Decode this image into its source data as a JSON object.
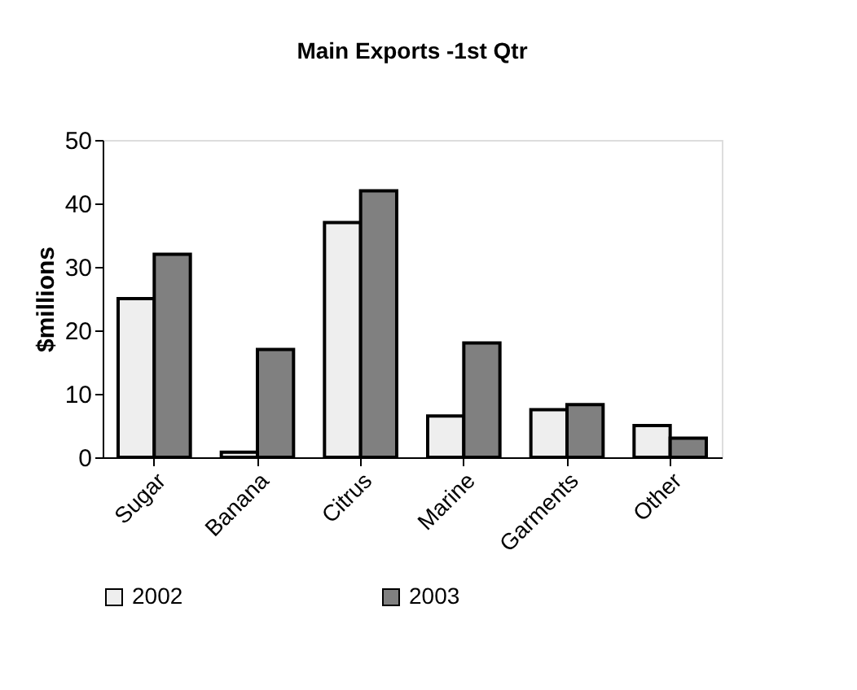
{
  "chart_data": {
    "type": "bar",
    "title": "Main  Exports -1st Qtr",
    "ylabel": "$millions",
    "categories": [
      "Sugar",
      "Banana",
      "Citrus",
      "Marine",
      "Garments",
      "Other"
    ],
    "series": [
      {
        "name": "2002",
        "color": "#eeeeee",
        "values": [
          25,
          0.8,
          37,
          6.5,
          7.5,
          5
        ]
      },
      {
        "name": "2003",
        "color": "#808080",
        "values": [
          32,
          17,
          42,
          18,
          8.3,
          3
        ]
      }
    ],
    "ylim": [
      0,
      50
    ],
    "yticks": [
      0,
      10,
      20,
      30,
      40,
      50
    ],
    "grid": false,
    "legend": "bottom"
  }
}
